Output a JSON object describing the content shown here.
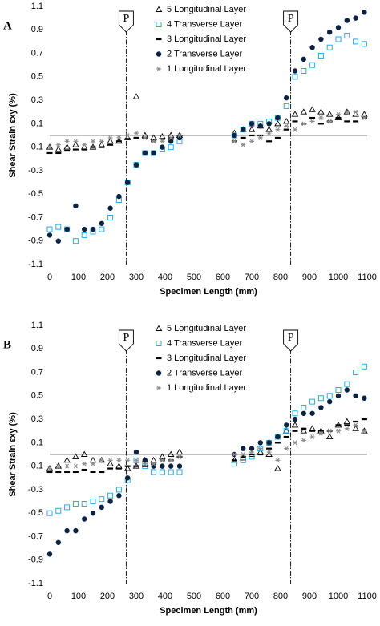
{
  "chart_data": [
    {
      "type": "scatter",
      "panel": "A",
      "xlabel": "Specimen Length (mm)",
      "ylabel": "Shear Strain εxy (%)",
      "xlim": [
        0,
        1100
      ],
      "xticks": [
        0,
        100,
        200,
        300,
        400,
        500,
        600,
        700,
        800,
        900,
        1000,
        1100
      ],
      "ylim": [
        -1.1,
        1.1
      ],
      "yticks": [
        1.1,
        0.9,
        0.7,
        0.5,
        0.3,
        0.1,
        -0.1,
        -0.3,
        -0.5,
        -0.7,
        -0.9,
        -1.1
      ],
      "legend": "top-center",
      "annotations": [
        {
          "text": "P",
          "x": 265
        },
        {
          "text": "P",
          "x": 835
        }
      ],
      "x": [
        0,
        30,
        60,
        90,
        120,
        150,
        180,
        210,
        240,
        270,
        300,
        330,
        360,
        390,
        420,
        450,
        640,
        670,
        700,
        730,
        760,
        790,
        820,
        850,
        880,
        910,
        940,
        970,
        1000,
        1030,
        1060,
        1090
      ],
      "series": [
        {
          "name": "5 Longitudinal Layer",
          "marker": "triangle",
          "color": "#000000",
          "values": [
            -0.1,
            -0.12,
            -0.1,
            -0.08,
            -0.1,
            -0.1,
            -0.08,
            -0.05,
            -0.05,
            -0.02,
            0.33,
            0.0,
            -0.02,
            -0.01,
            0.0,
            0.0,
            0.02,
            0.05,
            0.05,
            0.08,
            0.05,
            0.1,
            0.12,
            0.18,
            0.2,
            0.22,
            0.2,
            0.18,
            0.15,
            0.2,
            0.18,
            0.18
          ]
        },
        {
          "name": "4 Transverse Layer",
          "marker": "square",
          "color": "#29abe2",
          "values": [
            -0.8,
            -0.78,
            -0.8,
            -0.9,
            -0.85,
            -0.82,
            -0.8,
            -0.7,
            -0.55,
            -0.4,
            -0.25,
            -0.15,
            -0.15,
            -0.12,
            -0.1,
            -0.05,
            0.0,
            0.05,
            0.1,
            0.1,
            0.12,
            0.15,
            0.25,
            0.5,
            0.55,
            0.6,
            0.68,
            0.75,
            0.82,
            0.85,
            0.8,
            0.78
          ]
        },
        {
          "name": "3 Longitudinal Layer",
          "marker": "dash",
          "color": "#000000",
          "values": [
            -0.15,
            -0.15,
            -0.13,
            -0.12,
            -0.12,
            -0.1,
            -0.1,
            -0.08,
            -0.05,
            -0.03,
            -0.02,
            -0.02,
            -0.05,
            -0.03,
            -0.03,
            0.0,
            -0.05,
            -0.02,
            0.0,
            0.0,
            -0.05,
            -0.02,
            0.05,
            0.12,
            0.1,
            0.15,
            0.1,
            0.12,
            0.15,
            0.12,
            0.12,
            0.15
          ]
        },
        {
          "name": "2 Transverse Layer",
          "marker": "circle",
          "color": "#0b2240",
          "values": [
            -0.85,
            -0.9,
            -0.8,
            -0.6,
            -0.8,
            -0.8,
            -0.75,
            -0.62,
            -0.52,
            -0.4,
            -0.25,
            -0.15,
            -0.15,
            -0.1,
            -0.05,
            -0.02,
            0.0,
            0.05,
            0.1,
            0.08,
            0.1,
            0.15,
            0.32,
            0.55,
            0.65,
            0.75,
            0.82,
            0.88,
            0.92,
            0.98,
            1.0,
            1.05
          ]
        },
        {
          "name": "1 Longitudinal Layer",
          "marker": "asterisk",
          "color": "#8c8c8c",
          "values": [
            -0.1,
            -0.08,
            -0.05,
            -0.05,
            -0.08,
            -0.05,
            -0.05,
            -0.02,
            -0.02,
            0.0,
            0.02,
            -0.02,
            -0.05,
            -0.05,
            -0.02,
            0.0,
            -0.05,
            -0.08,
            -0.05,
            -0.02,
            0.02,
            0.05,
            0.08,
            0.05,
            0.1,
            0.12,
            0.15,
            0.12,
            0.18,
            0.2,
            0.2,
            0.15
          ]
        }
      ]
    },
    {
      "type": "scatter",
      "panel": "B",
      "xlabel": "Specimen Length (mm)",
      "ylabel": "Shear Strain εxy (%)",
      "xlim": [
        0,
        1100
      ],
      "xticks": [
        0,
        100,
        200,
        300,
        400,
        500,
        600,
        700,
        800,
        900,
        1000,
        1100
      ],
      "ylim": [
        -1.1,
        1.1
      ],
      "yticks": [
        1.1,
        0.9,
        0.7,
        0.5,
        0.3,
        0.1,
        -0.1,
        -0.3,
        -0.5,
        -0.7,
        -0.9,
        -1.1
      ],
      "legend": "top-center",
      "annotations": [
        {
          "text": "P",
          "x": 265
        },
        {
          "text": "P",
          "x": 835
        }
      ],
      "x": [
        0,
        30,
        60,
        90,
        120,
        150,
        180,
        210,
        240,
        270,
        300,
        330,
        360,
        390,
        420,
        450,
        640,
        670,
        700,
        730,
        760,
        790,
        820,
        850,
        880,
        910,
        940,
        970,
        1000,
        1030,
        1060,
        1090
      ],
      "series": [
        {
          "name": "5 Longitudinal Layer",
          "marker": "triangle",
          "color": "#000000",
          "values": [
            -0.12,
            -0.1,
            -0.05,
            -0.02,
            0.0,
            -0.05,
            -0.05,
            -0.08,
            -0.1,
            -0.12,
            -0.1,
            -0.05,
            -0.05,
            -0.02,
            0.0,
            0.02,
            -0.05,
            -0.03,
            0.0,
            0.02,
            0.0,
            -0.12,
            0.2,
            0.25,
            0.2,
            0.22,
            0.2,
            0.15,
            0.25,
            0.28,
            0.22,
            0.2
          ]
        },
        {
          "name": "4 Transverse Layer",
          "marker": "square",
          "color": "#29abe2",
          "values": [
            -0.5,
            -0.48,
            -0.45,
            -0.42,
            -0.42,
            -0.4,
            -0.38,
            -0.35,
            -0.3,
            -0.22,
            -0.05,
            -0.1,
            -0.15,
            -0.15,
            -0.15,
            -0.15,
            -0.08,
            -0.05,
            -0.02,
            0.05,
            0.1,
            0.15,
            0.2,
            0.35,
            0.4,
            0.45,
            0.48,
            0.5,
            0.55,
            0.6,
            0.7,
            0.75
          ]
        },
        {
          "name": "3 Longitudinal Layer",
          "marker": "dash",
          "color": "#000000",
          "values": [
            -0.15,
            -0.15,
            -0.15,
            -0.15,
            -0.13,
            -0.15,
            -0.15,
            -0.12,
            -0.12,
            -0.1,
            -0.1,
            -0.1,
            -0.08,
            -0.05,
            -0.05,
            -0.02,
            -0.05,
            -0.02,
            0.0,
            0.0,
            0.05,
            0.1,
            0.15,
            0.2,
            0.22,
            0.2,
            0.2,
            0.2,
            0.25,
            0.25,
            0.28,
            0.3
          ]
        },
        {
          "name": "2 Transverse Layer",
          "marker": "circle",
          "color": "#0b2240",
          "values": [
            -0.85,
            -0.75,
            -0.65,
            -0.65,
            -0.55,
            -0.5,
            -0.45,
            -0.4,
            -0.35,
            -0.2,
            0.02,
            -0.05,
            -0.1,
            -0.1,
            -0.1,
            -0.1,
            0.0,
            0.05,
            0.05,
            0.1,
            0.1,
            0.15,
            0.25,
            0.3,
            0.35,
            0.35,
            0.4,
            0.45,
            0.5,
            0.55,
            0.5,
            0.48
          ]
        },
        {
          "name": "1 Longitudinal Layer",
          "marker": "asterisk",
          "color": "#8c8c8c",
          "values": [
            -0.12,
            -0.1,
            -0.1,
            -0.1,
            -0.08,
            -0.08,
            -0.05,
            -0.05,
            -0.05,
            -0.05,
            -0.05,
            -0.08,
            -0.08,
            -0.05,
            -0.05,
            -0.02,
            0.0,
            0.0,
            0.02,
            0.05,
            0.02,
            -0.05,
            0.05,
            0.1,
            0.12,
            0.15,
            0.18,
            0.2,
            0.2,
            0.22,
            0.25,
            0.2
          ]
        }
      ]
    }
  ]
}
